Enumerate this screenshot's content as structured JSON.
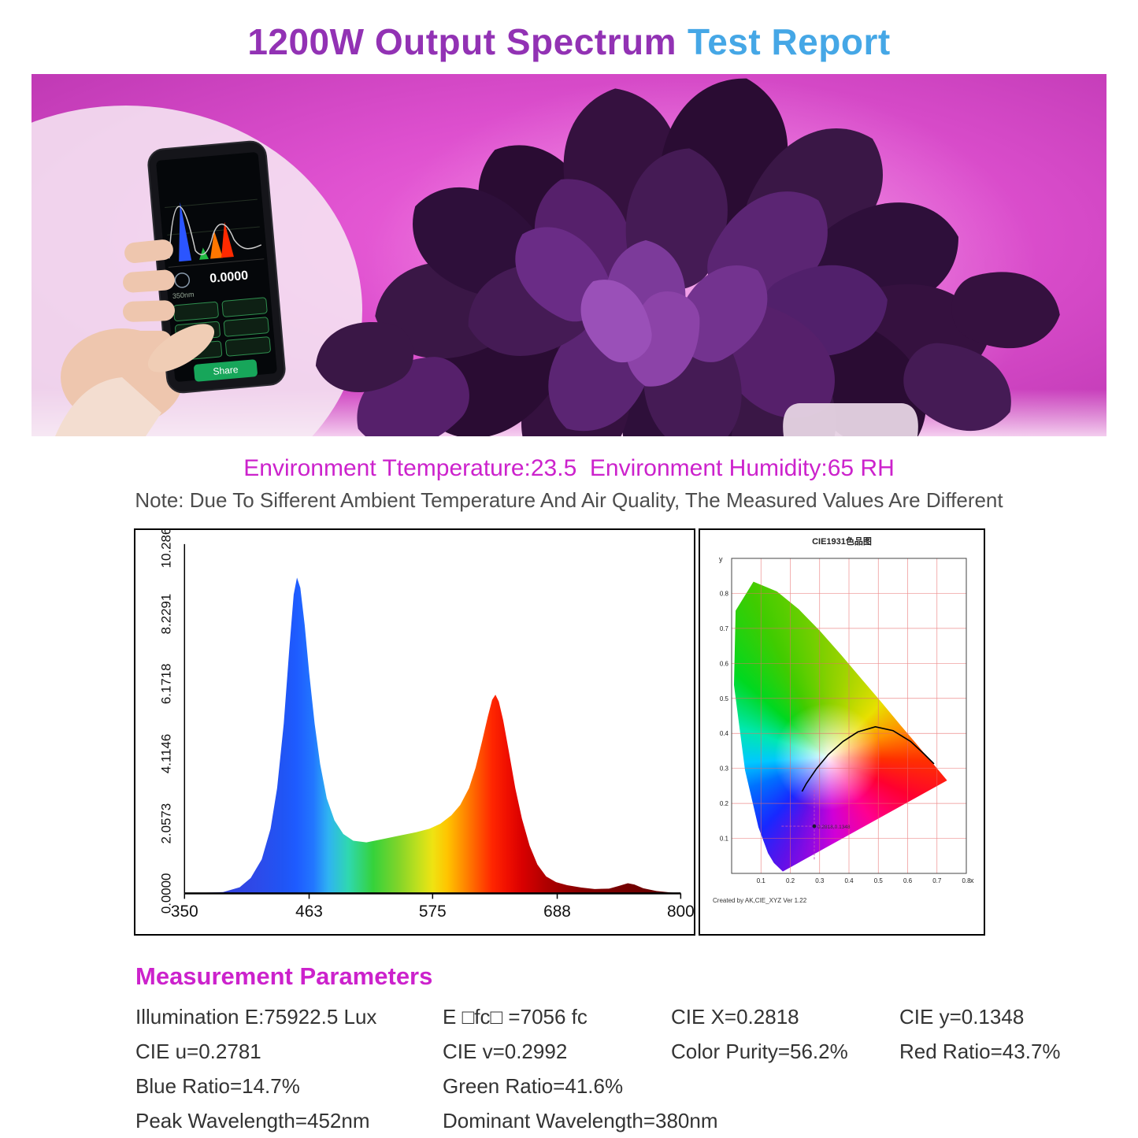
{
  "title": {
    "part1": "1200W Output Spectrum",
    "part2": "Test Report"
  },
  "banner": {
    "phone": {
      "reading": "0.0000",
      "wavelength": "350nm",
      "share_label": "Share"
    }
  },
  "environment": {
    "line": "Environment Ttemperature:23.5  Environment Humidity:65 RH",
    "note": "Note: Due To Sifferent Ambient Temperature And Air Quality, The Measured Values Are Different"
  },
  "chart_data": [
    {
      "type": "area",
      "title": "",
      "xlabel": "",
      "ylabel": "",
      "xlim": [
        350,
        800
      ],
      "ylim": [
        0,
        10.2864
      ],
      "xticks": [
        "350",
        "463",
        "575",
        "688",
        "800"
      ],
      "yticks": [
        "0.0000",
        "2.0573",
        "4.1146",
        "6.1718",
        "8.2291",
        "10.2864"
      ],
      "grid": false,
      "points": [
        [
          350,
          0
        ],
        [
          385,
          0.04
        ],
        [
          400,
          0.18
        ],
        [
          410,
          0.45
        ],
        [
          420,
          1.0
        ],
        [
          428,
          1.9
        ],
        [
          434,
          3.1
        ],
        [
          440,
          5.0
        ],
        [
          445,
          7.2
        ],
        [
          449,
          8.8
        ],
        [
          452,
          9.3
        ],
        [
          455,
          9.0
        ],
        [
          459,
          7.9
        ],
        [
          463,
          6.5
        ],
        [
          468,
          5.0
        ],
        [
          473,
          3.8
        ],
        [
          479,
          2.8
        ],
        [
          486,
          2.15
        ],
        [
          494,
          1.75
        ],
        [
          503,
          1.55
        ],
        [
          515,
          1.5
        ],
        [
          530,
          1.6
        ],
        [
          545,
          1.7
        ],
        [
          560,
          1.8
        ],
        [
          572,
          1.9
        ],
        [
          582,
          2.05
        ],
        [
          592,
          2.3
        ],
        [
          600,
          2.6
        ],
        [
          608,
          3.1
        ],
        [
          614,
          3.7
        ],
        [
          620,
          4.5
        ],
        [
          625,
          5.2
        ],
        [
          629,
          5.7
        ],
        [
          632,
          5.85
        ],
        [
          635,
          5.65
        ],
        [
          639,
          5.1
        ],
        [
          644,
          4.2
        ],
        [
          650,
          3.1
        ],
        [
          656,
          2.2
        ],
        [
          663,
          1.4
        ],
        [
          670,
          0.85
        ],
        [
          678,
          0.5
        ],
        [
          687,
          0.33
        ],
        [
          697,
          0.24
        ],
        [
          710,
          0.17
        ],
        [
          722,
          0.13
        ],
        [
          735,
          0.14
        ],
        [
          744,
          0.22
        ],
        [
          752,
          0.3
        ],
        [
          758,
          0.26
        ],
        [
          766,
          0.15
        ],
        [
          778,
          0.07
        ],
        [
          790,
          0.03
        ],
        [
          800,
          0
        ]
      ],
      "peak_annotations": {
        "blue_peak_nm": 452,
        "red_peak_nm": 631
      }
    },
    {
      "type": "scatter",
      "title": "CIE1931色品图",
      "xlabel": "x",
      "ylabel": "y",
      "xlim": [
        0,
        0.8
      ],
      "ylim": [
        0,
        0.9
      ],
      "xticks": [
        "0.1",
        "0.2",
        "0.3",
        "0.4",
        "0.5",
        "0.6",
        "0.7",
        "0.8"
      ],
      "yticks": [
        "0.1",
        "0.2",
        "0.3",
        "0.4",
        "0.5",
        "0.6",
        "0.7",
        "0.8"
      ],
      "grid": true,
      "points": [
        {
          "x": 0.2818,
          "y": 0.1348,
          "label": "0.2818,0.1348"
        }
      ],
      "planckian_locus": [
        [
          0.69,
          0.313
        ],
        [
          0.655,
          0.342
        ],
        [
          0.61,
          0.377
        ],
        [
          0.55,
          0.408
        ],
        [
          0.49,
          0.419
        ],
        [
          0.43,
          0.404
        ],
        [
          0.38,
          0.377
        ],
        [
          0.33,
          0.34
        ],
        [
          0.29,
          0.3
        ],
        [
          0.255,
          0.257
        ],
        [
          0.24,
          0.234
        ]
      ],
      "footnote": "Created by AK,CIE_XYZ Ver 1.22"
    }
  ],
  "measurement": {
    "heading": "Measurement Parameters",
    "items": [
      "Illumination E:75922.5 Lux",
      "E □fc□ =7056 fc",
      "CIE X=0.2818",
      "CIE y=0.1348",
      "CIE u=0.2781",
      "CIE v=0.2992",
      "Color Purity=56.2%",
      "Red Ratio=43.7%",
      "Blue Ratio=14.7%",
      "Green Ratio=41.6%",
      "",
      "",
      "Peak Wavelength=452nm",
      "Dominant Wavelength=380nm",
      "",
      ""
    ]
  },
  "colors": {
    "title_purple": "#9232B4",
    "title_blue": "#45A7E6",
    "accent_magenta": "#CC22CC",
    "banner_pink": "#DD4FCE",
    "share_green": "#17A65A"
  }
}
